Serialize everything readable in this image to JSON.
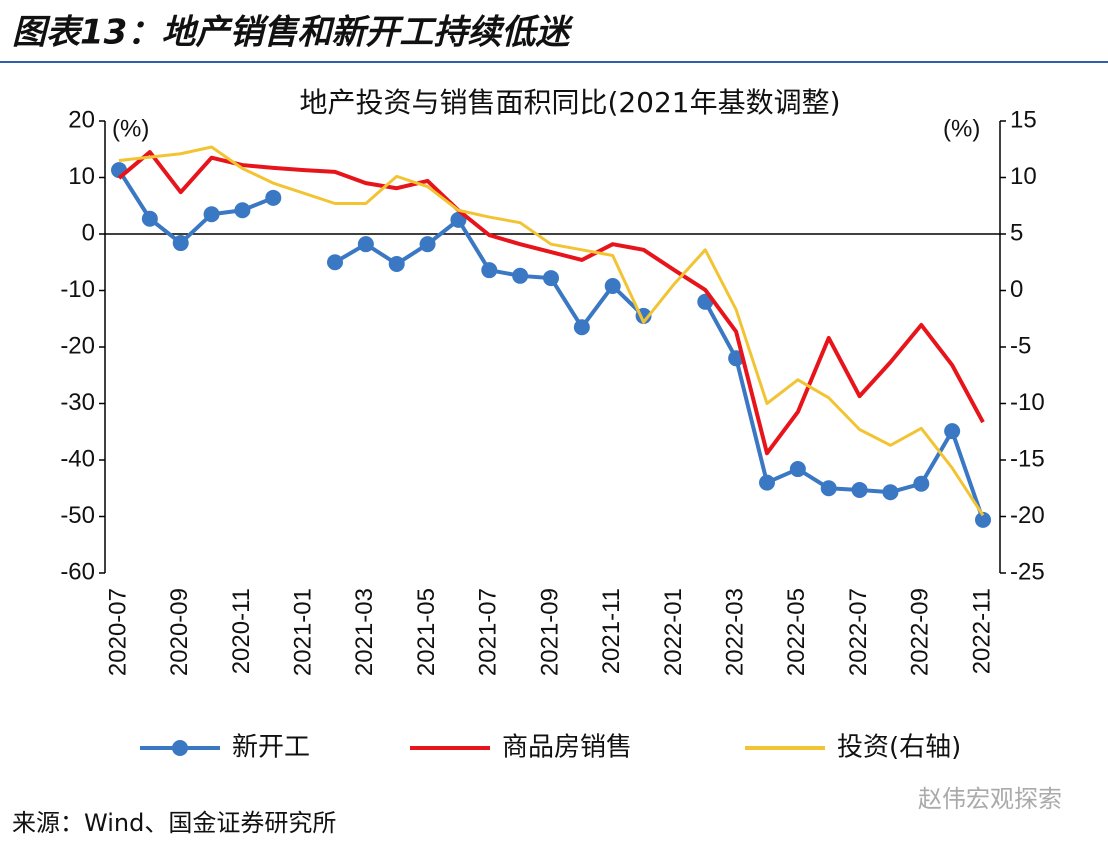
{
  "chart_data": {
    "type": "line",
    "header": "图表13：地产销售和新开工持续低迷",
    "title": "地产投资与销售面积同比(2021年基数调整)",
    "y_unit": "(%)",
    "y2_unit": "(%)",
    "categories": [
      "2020-07",
      null,
      "2020-09",
      null,
      "2020-11",
      null,
      "2021-01",
      null,
      "2021-03",
      null,
      "2021-05",
      null,
      "2021-07",
      null,
      "2021-09",
      null,
      "2021-11",
      null,
      "2022-01",
      null,
      "2022-03",
      null,
      "2022-05",
      null,
      "2022-07",
      null,
      "2022-09",
      null,
      "2022-11"
    ],
    "ylim": [
      -60,
      20
    ],
    "yticks": [
      -60,
      -50,
      -40,
      -30,
      -20,
      -10,
      0,
      10,
      20
    ],
    "y2lim": [
      -25,
      15
    ],
    "y2ticks": [
      -25,
      -20,
      -15,
      -10,
      -5,
      0,
      5,
      10,
      15
    ],
    "series": [
      {
        "name": "新开工",
        "color": "#3a78c4",
        "marker": true,
        "values": [
          11.3,
          2.7,
          -1.6,
          3.5,
          4.2,
          6.4,
          null,
          -5.0,
          -1.8,
          -5.3,
          -1.8,
          2.5,
          -6.4,
          -7.4,
          -7.8,
          -16.5,
          -9.2,
          -14.5,
          null,
          -12.0,
          -22.0,
          -44.0,
          -41.6,
          -45.0,
          -45.3,
          -45.7,
          -44.2,
          -34.9,
          -50.6
        ]
      },
      {
        "name": "商品房销售",
        "color": "#e8141c",
        "values": [
          9.9,
          14.5,
          7.4,
          13.5,
          12.2,
          11.7,
          11.3,
          11.0,
          9.0,
          8.1,
          9.4,
          4.2,
          -0.2,
          -1.8,
          -3.2,
          -4.6,
          -1.8,
          -2.8,
          -6.4,
          -9.9,
          -17.3,
          -38.8,
          -31.5,
          -18.4,
          -28.7,
          -22.7,
          -16.1,
          -23.2,
          -33.3
        ]
      },
      {
        "name": "投资(右轴)",
        "color": "#f2c433",
        "axis": "y2",
        "values": [
          11.5,
          11.8,
          12.1,
          12.7,
          10.8,
          9.5,
          8.6,
          7.7,
          7.7,
          10.1,
          9.2,
          7.1,
          6.5,
          6.0,
          4.1,
          3.6,
          3.1,
          -2.8,
          0.6,
          3.6,
          -1.7,
          -10.0,
          -7.9,
          -9.5,
          -12.3,
          -13.7,
          -12.2,
          -15.7,
          -19.9
        ]
      }
    ],
    "source": "来源：Wind、国金证券研究所",
    "watermark": "赵伟宏观探索"
  }
}
